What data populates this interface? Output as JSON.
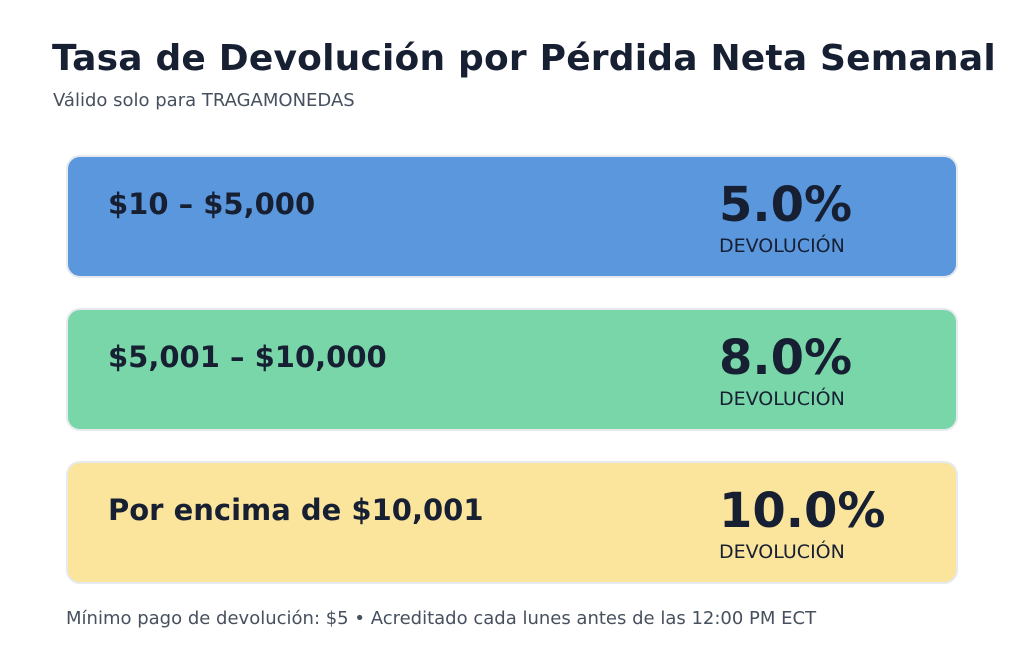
{
  "header": {
    "title": "Tasa de Devolución por Pérdida Neta Semanal",
    "subtitle": "Válido solo para TRAGAMONEDAS"
  },
  "tiers": [
    {
      "range": "$10 – $5,000",
      "rate": "5.0%",
      "rate_label": "DEVOLUCIÓN",
      "color": "#5b97dd"
    },
    {
      "range": "$5,001 – $10,000",
      "rate": "8.0%",
      "rate_label": "DEVOLUCIÓN",
      "color": "#78d6a9"
    },
    {
      "range": "Por encima de $10,001",
      "rate": "10.0%",
      "rate_label": "DEVOLUCIÓN",
      "color": "#fbe49c"
    }
  ],
  "footer": {
    "note": "Mínimo pago de devolución: $5 • Acreditado cada lunes antes de las 12:00 PM ECT"
  }
}
